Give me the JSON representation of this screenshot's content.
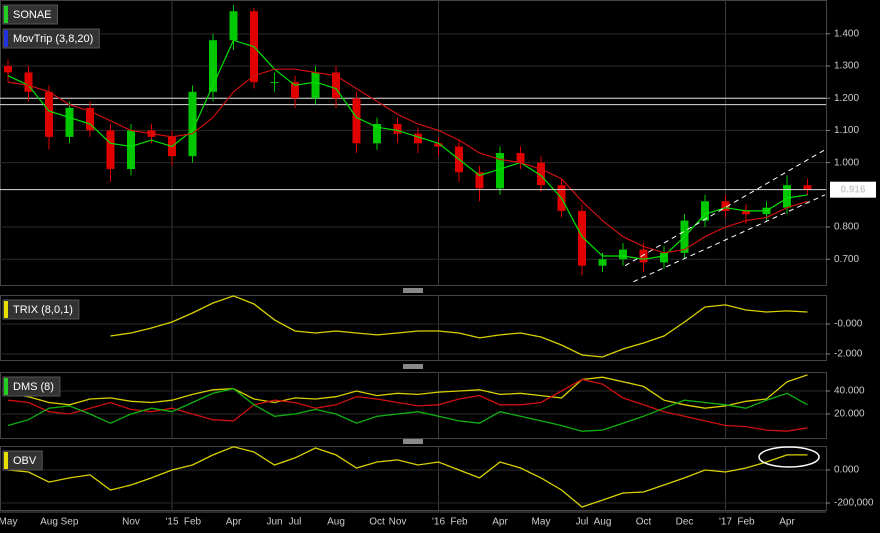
{
  "chart_data": [
    {
      "type": "candlestick",
      "name": "SONAE",
      "legend_color": "#22cc22",
      "color_up": "#00c800",
      "color_down": "#e00000",
      "categories": [
        "May",
        null,
        "Aug",
        "Sep",
        null,
        null,
        "Nov",
        null,
        "'15",
        "Feb",
        null,
        "Apr",
        null,
        "Jun",
        "Jul",
        null,
        "Aug",
        null,
        "Oct",
        "Nov",
        null,
        "'16",
        "Feb",
        null,
        "Apr",
        null,
        "May",
        null,
        "Jul",
        "Aug",
        null,
        "Oct",
        null,
        "Dec",
        null,
        "'17",
        "Feb",
        null,
        "Apr",
        null
      ],
      "open": [
        1.3,
        1.28,
        1.22,
        1.08,
        1.17,
        1.1,
        0.98,
        1.1,
        1.08,
        1.02,
        1.22,
        1.38,
        1.47,
        1.25,
        1.25,
        1.2,
        1.28,
        1.2,
        1.06,
        1.12,
        1.09,
        1.06,
        1.05,
        0.97,
        0.92,
        1.03,
        1.0,
        0.93,
        0.85,
        0.68,
        0.7,
        0.73,
        0.69,
        0.72,
        0.82,
        0.88,
        0.85,
        0.84,
        0.86,
        0.93
      ],
      "high": [
        1.32,
        1.3,
        1.24,
        1.19,
        1.19,
        1.12,
        1.12,
        1.12,
        1.1,
        1.24,
        1.4,
        1.49,
        1.48,
        1.28,
        1.27,
        1.3,
        1.3,
        1.22,
        1.14,
        1.14,
        1.11,
        1.08,
        1.07,
        0.99,
        1.05,
        1.05,
        1.02,
        0.95,
        0.87,
        0.72,
        0.75,
        0.75,
        0.74,
        0.84,
        0.9,
        0.9,
        0.87,
        0.88,
        0.96,
        0.95
      ],
      "low": [
        1.25,
        1.19,
        1.04,
        1.06,
        1.08,
        0.94,
        0.96,
        1.06,
        0.99,
        1.0,
        1.19,
        1.35,
        1.23,
        1.22,
        1.17,
        1.18,
        1.17,
        1.03,
        1.04,
        1.06,
        1.03,
        1.02,
        0.94,
        0.88,
        0.9,
        0.98,
        0.91,
        0.83,
        0.65,
        0.66,
        0.68,
        0.66,
        0.67,
        0.7,
        0.8,
        0.83,
        0.81,
        0.82,
        0.84,
        0.9
      ],
      "close": [
        1.28,
        1.22,
        1.08,
        1.17,
        1.1,
        0.98,
        1.1,
        1.08,
        1.02,
        1.22,
        1.38,
        1.47,
        1.25,
        1.25,
        1.2,
        1.28,
        1.2,
        1.06,
        1.12,
        1.09,
        1.06,
        1.05,
        0.97,
        0.92,
        1.03,
        1.0,
        0.93,
        0.85,
        0.68,
        0.7,
        0.73,
        0.69,
        0.72,
        0.82,
        0.88,
        0.85,
        0.84,
        0.86,
        0.93,
        0.916
      ],
      "overlay": {
        "name": "MovTrip (3,8,20)",
        "legend_color": "#2233dd",
        "series": [
          {
            "color": "#00e000",
            "values": [
              1.27,
              1.24,
              1.16,
              1.14,
              1.12,
              1.06,
              1.05,
              1.07,
              1.05,
              1.1,
              1.24,
              1.38,
              1.36,
              1.29,
              1.24,
              1.25,
              1.23,
              1.14,
              1.11,
              1.1,
              1.08,
              1.06,
              1.01,
              0.96,
              0.98,
              1.0,
              0.96,
              0.89,
              0.77,
              0.71,
              0.71,
              0.7,
              0.71,
              0.77,
              0.84,
              0.86,
              0.85,
              0.85,
              0.89,
              0.9
            ]
          },
          {
            "color": "#cc1010",
            "values": [
              1.25,
              1.24,
              1.22,
              1.18,
              1.16,
              1.13,
              1.1,
              1.09,
              1.08,
              1.09,
              1.14,
              1.22,
              1.27,
              1.29,
              1.29,
              1.28,
              1.27,
              1.23,
              1.19,
              1.15,
              1.12,
              1.1,
              1.07,
              1.03,
              1.01,
              1.0,
              0.98,
              0.95,
              0.88,
              0.82,
              0.77,
              0.74,
              0.72,
              0.73,
              0.77,
              0.8,
              0.82,
              0.83,
              0.86,
              0.88
            ]
          }
        ]
      },
      "hlines": [
        1.2,
        1.18
      ],
      "trendlines": [
        {
          "x": [
            30.5,
            39.85
          ],
          "values": [
            0.63,
            0.9
          ]
        },
        {
          "x": [
            30.1,
            39.85
          ],
          "values": [
            0.68,
            1.04
          ]
        }
      ],
      "ylim": [
        0.62,
        1.505
      ],
      "yticks": [
        {
          "value": 0.7,
          "label": "0.700"
        },
        {
          "value": 0.8,
          "label": "0.800"
        },
        {
          "value": 1.0,
          "label": "1.000"
        },
        {
          "value": 1.1,
          "label": "1.100"
        },
        {
          "value": 1.2,
          "label": "1.200"
        },
        {
          "value": 1.3,
          "label": "1.300"
        },
        {
          "value": 1.4,
          "label": "1.400"
        }
      ]
    },
    {
      "type": "line",
      "name": "TRIX (8,0,1)",
      "legend_color": "#e8e000",
      "series": [
        {
          "color": "#d8d000",
          "values": [
            null,
            null,
            null,
            null,
            null,
            -0.8,
            -0.6,
            -0.27,
            0.13,
            0.73,
            1.4,
            1.87,
            1.33,
            0.27,
            -0.47,
            -0.6,
            -0.47,
            -0.6,
            -0.73,
            -0.6,
            -0.47,
            -0.47,
            -0.6,
            -0.93,
            -0.73,
            -0.6,
            -0.87,
            -1.4,
            -2.07,
            -2.2,
            -1.67,
            -1.27,
            -0.8,
            0.13,
            1.13,
            1.27,
            0.93,
            0.8,
            0.87,
            0.8
          ]
        }
      ],
      "ylim": [
        -2.4,
        1.93
      ],
      "yticks": [
        {
          "value": -2,
          "label": "-2.000"
        },
        {
          "value": 0,
          "label": "-0.000"
        }
      ]
    },
    {
      "type": "line",
      "name": "DMS (8)",
      "legend_color": "#22cc22",
      "series": [
        {
          "color": "#d8d000",
          "values": [
            38,
            35,
            30,
            28,
            33,
            34,
            31,
            30,
            32,
            37,
            41,
            42,
            33,
            30,
            34,
            33,
            35,
            40,
            36,
            38,
            37,
            39,
            40,
            41,
            37,
            38,
            36,
            34,
            50,
            52,
            48,
            44,
            32,
            28,
            25,
            27,
            31,
            33,
            48,
            54
          ]
        },
        {
          "color": "#cc1010",
          "values": [
            32,
            30,
            22,
            20,
            25,
            30,
            24,
            22,
            25,
            20,
            15,
            14,
            28,
            32,
            30,
            25,
            28,
            35,
            33,
            30,
            27,
            28,
            33,
            36,
            28,
            28,
            30,
            40,
            50,
            46,
            34,
            28,
            22,
            18,
            14,
            10,
            9,
            6,
            5,
            8
          ]
        },
        {
          "color": "#10b010",
          "values": [
            10,
            15,
            25,
            27,
            20,
            12,
            20,
            25,
            22,
            30,
            38,
            42,
            28,
            18,
            20,
            24,
            20,
            12,
            18,
            20,
            22,
            18,
            14,
            12,
            22,
            18,
            14,
            10,
            5,
            6,
            12,
            18,
            25,
            32,
            30,
            28,
            25,
            32,
            38,
            28
          ]
        }
      ],
      "ylim": [
        -0.9,
        56.5
      ],
      "yticks": [
        {
          "value": 20,
          "label": "20.000"
        },
        {
          "value": 40,
          "label": "40.000"
        }
      ]
    },
    {
      "type": "line",
      "name": "OBV",
      "legend_color": "#e8e000",
      "series": [
        {
          "color": "#d8d000",
          "values": [
            0,
            -12000,
            -73000,
            -48000,
            -30000,
            -121000,
            -91000,
            -48000,
            0,
            30000,
            91000,
            140000,
            109000,
            30000,
            73000,
            133000,
            91000,
            12000,
            48000,
            61000,
            30000,
            48000,
            0,
            -48000,
            48000,
            12000,
            -48000,
            -121000,
            -224000,
            -182000,
            -139000,
            -133000,
            -91000,
            -48000,
            0,
            -12000,
            12000,
            48000,
            91000,
            91000
          ]
        }
      ],
      "ylim": [
        -242000,
        145000
      ],
      "yticks": [
        {
          "value": -200000,
          "label": "-200,000"
        },
        {
          "value": 0,
          "label": "0.000"
        }
      ]
    }
  ]
}
